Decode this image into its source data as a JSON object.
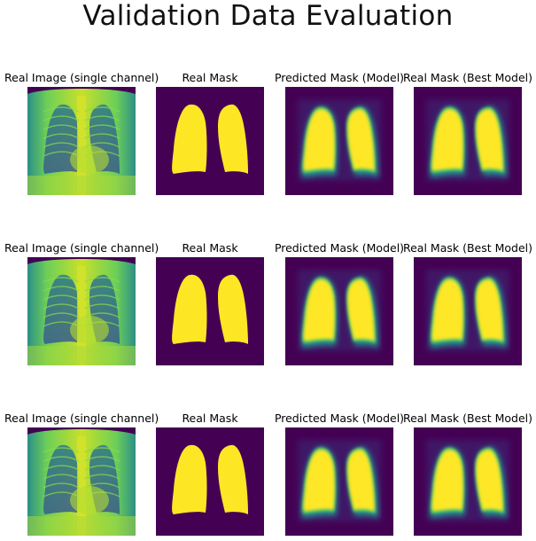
{
  "suptitle": "Validation Data Evaluation",
  "rows": [
    {
      "panels": [
        {
          "title": "Real Image (single channel)",
          "kind": "xray"
        },
        {
          "title": "Real Mask",
          "kind": "mask"
        },
        {
          "title": "Predicted Mask (Model)",
          "kind": "pred"
        },
        {
          "title": "Real Mask (Best Model)",
          "kind": "pred"
        }
      ]
    },
    {
      "panels": [
        {
          "title": "Real Image (single channel)",
          "kind": "xray"
        },
        {
          "title": "Real Mask",
          "kind": "mask"
        },
        {
          "title": "Predicted Mask (Model)",
          "kind": "pred"
        },
        {
          "title": "Real Mask (Best Model)",
          "kind": "pred"
        }
      ]
    },
    {
      "panels": [
        {
          "title": "Real Image (single channel)",
          "kind": "xray"
        },
        {
          "title": "Real Mask",
          "kind": "mask"
        },
        {
          "title": "Predicted Mask (Model)",
          "kind": "pred"
        },
        {
          "title": "Real Mask (Best Model)",
          "kind": "pred"
        }
      ]
    }
  ],
  "colors": {
    "background_dark": "#440154",
    "lung_yellow": "#fde725",
    "teal": "#21918c",
    "green": "#5ec962"
  }
}
